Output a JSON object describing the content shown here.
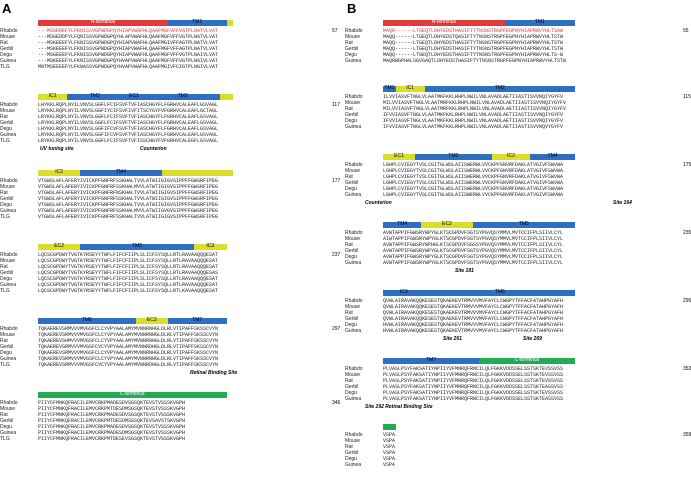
{
  "figure": {
    "panels": [
      {
        "letter": "A",
        "blocks": [
          {
            "end": "57",
            "rows": [
              {
                "sp": "Rhabdo",
                "seq": "---MSGEDEFYLFKNISSVGPWDGPQYHIAPVWAFHLQAAFMGFVFFVGTPLNATVLVAT"
              },
              {
                "sp": "Mouse",
                "seq": "---MSGEDDFYLFQNISSVGPWDGPQYHLAPVWAFHLQAAFMGFVFFVGTPLNATVLVAT"
              },
              {
                "sp": "Rat",
                "seq": "---MSKEEEFYLFKNISSVGPWDGPQYHIAPVWAFHLQAAFMGIVFFAGTPLNATVLVAT"
              },
              {
                "sp": "Gerbil",
                "seq": "---MSKEEEFYLFKNISSVGPWDGPQYHIAPVWAFHLQAAFMGFVFFAGTPLNATVLVAT"
              },
              {
                "sp": "Degu",
                "seq": "---MSGEEEFYLFKNISSVGPWDGPQYHIAPVWAFHLQAAFMGFVFFVGTPLNAIVLVAT"
              },
              {
                "sp": "Guinea",
                "seq": "---MSKEEEFYLFKNISSVGPWDGPQYHVAPVWAFHLQAAFMGFVFFVGTPLNAIVLVAT"
              },
              {
                "sp": "TLG",
                "seq": "MNTMSEEEEFYLFKNASSVGPWDGPQYHVAPVWAFHLQAAFMGIVFCIGTPLNGIVLVAT"
              }
            ],
            "sites": []
          },
          {
            "end": "117",
            "rows": [
              {
                "sp": "Rhabdo",
                "seq": "LHYKKLRQPLNYILVNVSLGGFLFCIFSVFTVFIASCHGYFLFGRHVCALEAFLGSVAGL"
              },
              {
                "sp": "Mouse",
                "seq": "LRYKKLRQPLNYILVNVSLGGFIYCIFSVFIVFITSCYGYFVFGRHVCALEAFLGCTAGL"
              },
              {
                "sp": "Rat",
                "seq": "LRYKKLRQPLNYILVNVSLGGFLFCIFSVFTVFIASCHGYFLFGRHVCALEAFLGSVAGL"
              },
              {
                "sp": "Gerbil",
                "seq": "LRYKKLRQPLNYILVNVSLGGFLFCIFSVFTVFIASCHGYFLFGRHVCALEAFLGSVAGL"
              },
              {
                "sp": "Degu",
                "seq": "LHYKKLRQPLNYILVNVSLGGFIFCVFSVFTVFIASCHGYFLFGRHVCALEAFLGSVAGL"
              },
              {
                "sp": "Guinea",
                "seq": "LRYKKLRQPLNYILVNVSLGGFIFCVFSVFTVFIASCHGYFLFGRHVCALEAFLGSVAGL"
              },
              {
                "sp": "TLG",
                "seq": "LRYKKLRQPLNYILVNVSLGGFLFCIFSVFTVFISSCHGYFVFGRHVCALEGFLGSVAGL"
              }
            ],
            "sites": [
              "UV tuning site",
              "Counterion"
            ]
          },
          {
            "end": "177",
            "rows": [
              {
                "sp": "Rhabdo",
                "seq": "VTGWSLAFLAFERYIVICKPFGNFRFSSKHALTVVLATWIIGIGVSIPPFFGWSRFIPEG"
              },
              {
                "sp": "Mouse",
                "seq": "VTGWSLAFLAFERYIVICKPFGNFRFSSKHALMVVLATWTIGIGVSIPPFFGWSRFIPEG"
              },
              {
                "sp": "Rat",
                "seq": "VTGWSLAFLAFERYIVICKPFGNFRFNSKHALTVVLATWIIGIGVSIPPFFGWSRFIPEG"
              },
              {
                "sp": "Gerbil",
                "seq": "VTGWSLAFLAFERYIVICKPFGNFRFSSKHALTVVLATWIIGIGVSIPPFFGWSRFIPEG"
              },
              {
                "sp": "Degu",
                "seq": "VTGWSLAFLAFERYIVICKPFGNFRFSSKHALTVVLATWIIGIGVSIPPFFGWSRFIPEG"
              },
              {
                "sp": "Guinea",
                "seq": "VTGWSLAFLAFERYIVICKPFGNFRFSSKHALMVVLATWIIGVGVSIPPFFGWSRFIPEG"
              },
              {
                "sp": "TLG",
                "seq": "VTGWSLAFLAFERYIVICKPFGNFRFSSKHALTVVLATWIIGIGVSIPPFFGWSRFIPEG"
              }
            ],
            "sites": []
          },
          {
            "end": "237",
            "rows": [
              {
                "sp": "Rhabdo",
                "seq": "LQCSCGPDWYTVGTKYRSEYYTWFLFIFCFIIPLSLICFSYSQLLRTLRAVAAQQQESAT"
              },
              {
                "sp": "Mouse",
                "seq": "LQCSCGPDWYTVGTKYRSEYYTWFLFIFCFIIPLSLICFSYSQLLRTLRAVAAQQQESAT"
              },
              {
                "sp": "Rat",
                "seq": "LQCSCGPDWYTVGTKYRSEYYTWFLFIFCFIIPLSLICFSYSQLLRTLRAVAAQQQESAT"
              },
              {
                "sp": "Gerbil",
                "seq": "LQCSCGPDWYTVGTKYRSEYYTWFLFIFCFIIPLSLICFSYSQLLRTLRAVAAQQQESAS"
              },
              {
                "sp": "Degu",
                "seq": "LQCSCGPDWYTVGTKYRSEYYTWFLFIFCFIIPLSLICFSYSQLLRTLRAVAAQQQESAT"
              },
              {
                "sp": "Guinea",
                "seq": "LQCSCGPDWYTVGTKYRSEYYTWFLFIFCFIIPLSLICFSYSQLLRTLRAVAAQQQESAT"
              },
              {
                "sp": "TLG",
                "seq": "LQCSCGPDWYTVGTKYRSEYYTWFLFIFCFIIPLSLICFSYSQLLRTLKAVAAQQQESAT"
              }
            ],
            "sites": []
          },
          {
            "end": "297",
            "rows": [
              {
                "sp": "Rhabdo",
                "seq": "TQKAEREVSRMVVVMVGSFCLCYVPYAALAMYMVNNRNHGLDLRLVTIPAFFSKSSCVYN"
              },
              {
                "sp": "Mouse",
                "seq": "TQKAEREVSRMVVVMVGSFCLCYVPYAALAMYMVNNRNHGLDLRLVTIPAFFSKSSCVYN"
              },
              {
                "sp": "Rat",
                "seq": "TQKAEREVSHMVVVMVGSFCLCYVPYAALAMYMVNNRNHGLDLRLVTIPAFFSKSSCVYN"
              },
              {
                "sp": "Gerbil",
                "seq": "TQKAEREVSRMVVVMVGSFCVCYVPYAALAMYMVNNRDHGLDLRLVTIPAFFSKSSCVYN"
              },
              {
                "sp": "Degu",
                "seq": "TQKAEREVSRMVVVMVGSFCLCYVPYAALAMYMVNNRNHGLDLRLVTIPAFFSKSSCVYN"
              },
              {
                "sp": "Guinea",
                "seq": "TQKAEREVSRMVVVMVGSFCLCYVPYAALAMYMVNNRNHGLDLRLVTIPAFFSKSSCVYN"
              },
              {
                "sp": "TLG",
                "seq": "TQKAEREVSRMVVVMVGSFCVCYVPYAALAMYMVNNRDHGLDLRLVTIPAFFSKSSCVYN"
              }
            ],
            "sites": [
              "Retinal Binding Site"
            ]
          },
          {
            "end": "346",
            "rows": [
              {
                "sp": "Rhabdo",
                "seq": "PIIYCFMNKQFRACILEMVCRKPMADESDVSGSQKTEVSTVSSSKVGPH"
              },
              {
                "sp": "Mouse",
                "seq": "PIIYCFMNKQFRACILEMVCRKPMTDESDMSGSQKTEVSTVSSSKVGPH"
              },
              {
                "sp": "Rat",
                "seq": "PIIYCFMNKQFRACILEMVCRKPMADESDVSGSQKTEVSTVSSSKVGPH"
              },
              {
                "sp": "Gerbil",
                "seq": "PIIYCFMNKQFRACILEMVCRKPMTDESDMSGSQKTEVSAVSTSKVGPH"
              },
              {
                "sp": "Degu",
                "seq": "PIIYCFMNKQFRACILEMVCRKPMADESDVSGSQKTEVSTVSSSKVGPH"
              },
              {
                "sp": "Guinea",
                "seq": "PIIYCFMNKQFRACILEMVCRKPMADESDMSGSQKTEVSTVSSSKVGPH"
              },
              {
                "sp": "TLG",
                "seq": "PIIYCFMNKQFRACILEMVCRKPMTDESEVSGSQKTEVSTVSSSKVGPH"
              }
            ],
            "sites": []
          }
        ]
      },
      {
        "letter": "B",
        "blocks": [
          {
            "end": "55",
            "rows": [
              {
                "sp": "Rhabdo",
                "seq": "MAQR------LTGEQTLDHYEDSTHASIFTYTNSNSTRGPFEGPNYHIAPRWVYHLTSAW"
              },
              {
                "sp": "Mouse",
                "seq": "MAQQ------LTGEQTLDHYEDSTQASIFTYTNSNSTRGPFEGPNYHIAPRWVYHLTSTW"
              },
              {
                "sp": "Rat",
                "seq": "MAQQ------LTGEQTLDHYEDSTHASIFTYTNSNSTRGPFEGPNYHIAPRWVYHLTSTW"
              },
              {
                "sp": "Gerbil",
                "seq": "MAQQ------LTGEQTLDHYEDSTHASIFTYTNSNSTRGPFEGPNYHIAPRWVYHLTSTW"
              },
              {
                "sp": "Degu",
                "seq": "MAQQ------LTGEQTLDHYEDSTHASIFTYTNSNSTRGPFEGPNYHIAPRWVYHLTS-W"
              },
              {
                "sp": "Guinea",
                "seq": "MAQRWGPHALSGVGAQTLDHYEDSTHASIFTYTNSNSTRGPFEGPNYHIAPRWVYHLTSTW"
              }
            ],
            "sites": []
          },
          {
            "end": "115",
            "rows": [
              {
                "sp": "Rhabdo",
                "seq": "ILVVIASVFTNGLVLAATMKFKKLRHPLNWILVNLAVADLAETIIASTISVVNQIYGYFV"
              },
              {
                "sp": "Mouse",
                "seq": "MILVVIASVFTNGLVLAATMRFKKLRHPLNWILVNLAVADLAETIIASTISVVNQIYGYFV"
              },
              {
                "sp": "Rat",
                "seq": "MILVVIASVFTNGLVLAATMRFKKLRHPLNWILVNLAVADLAETIIASTISVVNQIYGYFV"
              },
              {
                "sp": "Gerbil",
                "seq": "IFVVIASVFTNGLVLAATMKFKKLRHPLNWILVNLAVADLAETIIASTISVVNQIYGYFV"
              },
              {
                "sp": "Degu",
                "seq": "IFVVIASVFTNGLVLAATMKFKKLRHPLNWILVNLAVADLAETIIASTISVVNQIYGYFV"
              },
              {
                "sp": "Guinea",
                "seq": "IFVVIASVFTNGLVLAATMKFKKLRHPLNWILVNLAVADLAETIIASTISVVNQVYGYFV"
              }
            ],
            "sites": []
          },
          {
            "end": "175",
            "rows": [
              {
                "sp": "Rhabdo",
                "seq": "LGHPLCVIEGYTVSLCGITGLWSLAIISWERWLVVCKPFGNVRFDAKLATVGIVFSWVWA"
              },
              {
                "sp": "Mouse",
                "seq": "LGHPLCVIEGYTVSLCGITGLWSLAIISWERWLVVCKPFGNVRFDAKLATVGIVFSWVWA"
              },
              {
                "sp": "Rat",
                "seq": "LGHPLCVIEGYTVSLCGITGLWSLAIISWERWLVVCKPFGNVRFDAKLATVGIVFSWVWA"
              },
              {
                "sp": "Gerbil",
                "seq": "LGHPLCVIEGYTVSLCGITGLWSLAIISWERWLVVCKPFGNVRFDAKLATVGIVFSWVWA"
              },
              {
                "sp": "Degu",
                "seq": "LGHPLCVIEGYTVSLCGITGLWSLAIISWERWLVVCKPFGNVRFDAKLATVGIVFSWVWA"
              },
              {
                "sp": "Guinea",
                "seq": "LGHPLCVIEGYTVSLCGITGLWSLAIISWERWLVVCKPFGNVRFDAKLATVGIVFSWVWA"
              }
            ],
            "sites": [
              "Counterion",
              "Site 164"
            ]
          },
          {
            "end": "235",
            "rows": [
              {
                "sp": "Rhabdo",
                "seq": "AVWTAPPIFGWSRYWPYGLKTSCGPDVFSGTSYPGVQSYMMVLMVTCCIFPLSIIVLCYL"
              },
              {
                "sp": "Mouse",
                "seq": "AIWTAPPIFGWSRYWPYGLKTSCGPDVFSGTSYPGVQSYMMVLMVTCCIFPLSIIVLCYL"
              },
              {
                "sp": "Rat",
                "seq": "AVWTAPPIFGWSRYWPHGLKTSCGPDVFSGSSYPGVQSYMMVLMVTCCIFPLSIIVLCYL"
              },
              {
                "sp": "Gerbil",
                "seq": "AVWTAPPIFGWSRYWPYGLKTSCGPDVFSGTSYPGVQSYMMVLMVTCCIFPLSIIVLCYL"
              },
              {
                "sp": "Degu",
                "seq": "AVWTAPPIFGWSRYWPYGLKTSCGPDVFSGTSYPGVQSYMMVLMVTCCIFPLSIIVLCYL"
              },
              {
                "sp": "Guinea",
                "seq": "AVWTAPPIFGWSRYWPYGLKTSCGPDVFSGTSYPGVQSYMMVLMVTCCIFPLSIIVLCYL"
              }
            ],
            "sites": [
              "Site 181"
            ]
          },
          {
            "end": "295",
            "rows": [
              {
                "sp": "Rhabdo",
                "seq": "QVWLAIRAVAKQQKESESTQKAEKEVTRMVVVMVFAYCLCWGPYTFFACFATAHPGYAFH"
              },
              {
                "sp": "Mouse",
                "seq": "QVWLAIRAVAKQQKESESTQKAEKEVTRMVVVMVFAYCLCWGPYTFFACFATAHPGYAFH"
              },
              {
                "sp": "Rat",
                "seq": "QVWLAIRAVAKQQKESESTQKAEKEVTRMVVVMVFAYCLCWGPYTFFACFATAHPGYAFH"
              },
              {
                "sp": "Gerbil",
                "seq": "QVWLAIRAVAKQQKESESTQKAEKEVTRMVVVMVFAYCLCWGPYTFFACFATAHPGYAFH"
              },
              {
                "sp": "Degu",
                "seq": "HVWLAIRAVAKQQKESESTQKAEKEVTRMVVVMVFAYCLCWGPYTFFACFATAHPGYAFH"
              },
              {
                "sp": "Guinea",
                "seq": "HVWLAIRAVAKQQKESESTQKAEKEVTRMVVVMVFAYCLCWGPYTFFACFATAHPGYAFH"
              }
            ],
            "sites": [
              "Site 261",
              "Site 269"
            ]
          },
          {
            "end": "353",
            "rows": [
              {
                "sp": "Rhabdo",
                "seq": "PLVASLPSYFAKSATIYNPIIYVFMNRQFRNCILQLFGKKVDDSSELSSTSKTEVSSVSS"
              },
              {
                "sp": "Mouse",
                "seq": "PLVASLPSYFAKSATIYNPIIYVFMNRQFRNCILQLFGKKVDDSSELSSTSKTEVSSVSS"
              },
              {
                "sp": "Rat",
                "seq": "PLVASLPSYFAKSATIYNPIIYVFMNRQFRNCILQLFGKKVDDSSELSSTSKTEVSSVSS"
              },
              {
                "sp": "Gerbil",
                "seq": "PLVASLPSYFAKSATIYNPIIYVFMNRQFRNCILQLFGKKVDDSSELSSTSKTEASSVSS"
              },
              {
                "sp": "Degu",
                "seq": "PLVASLPSYFAKSATIYNPIIYVFMNRQFRNCILQLFGKKVDDSSELSSTSKTEVSSVSS"
              },
              {
                "sp": "Guinea",
                "seq": "PLVASLPSYFAKSATIYNPIIYVFMNRQFRNCILQLFGKKVDDSSELSSTSKTEASSVSS"
              }
            ],
            "sites": [
              "Site 292 Retinal Binding Site"
            ]
          },
          {
            "end": "359",
            "rows": [
              {
                "sp": "Rhabdo",
                "seq": "VSPA"
              },
              {
                "sp": "Mouse",
                "seq": "VSPA"
              },
              {
                "sp": "Rat",
                "seq": "VSPA"
              },
              {
                "sp": "Gerbil",
                "seq": "VSPA"
              },
              {
                "sp": "Degu",
                "seq": "VSPA"
              },
              {
                "sp": "Guinea",
                "seq": "VSPA"
              }
            ],
            "sites": []
          }
        ]
      }
    ]
  },
  "legend_colors": {
    "N-terminus": "#e03a3a",
    "TM": "#2e6fc4",
    "IC": "#d8de2a",
    "EC": "#2e6fc4",
    "C-terminus": "#22aa55",
    "highlight_text": "#2f7fd8",
    "nterm_text": "#e03a3a",
    "cterm_text": "#22aa55"
  }
}
